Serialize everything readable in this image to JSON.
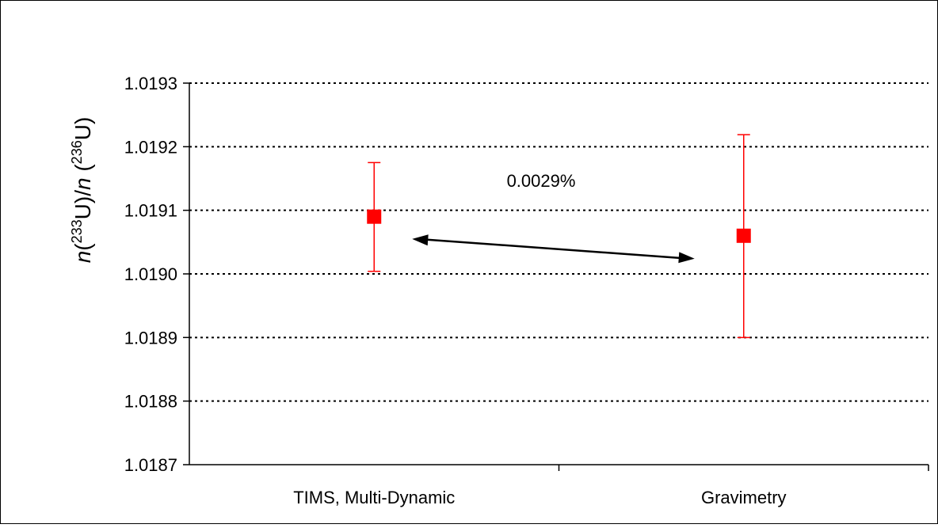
{
  "chart_data": {
    "type": "scatter",
    "categories": [
      "TIMS, Multi-Dynamic",
      "Gravimetry"
    ],
    "series": [
      {
        "values": [
          1.01909,
          1.01906
        ],
        "error_low": [
          1.019004,
          1.0189
        ],
        "error_high": [
          1.019175,
          1.019219
        ]
      }
    ],
    "ylim": [
      1.0187,
      1.0193
    ],
    "yticks": [
      "1.0187",
      "1.0188",
      "1.0189",
      "1.0190",
      "1.0191",
      "1.0192",
      "1.0193"
    ],
    "ytick_values": [
      1.0187,
      1.0188,
      1.0189,
      1.019,
      1.0191,
      1.0192,
      1.0193
    ],
    "ylabel_parts": [
      "n",
      "(",
      "233",
      "U)/",
      "n",
      " (",
      "236",
      "U)"
    ],
    "grid": true,
    "grid_style": "dotted",
    "annotation": {
      "text": "0.0029%",
      "arrow_from": {
        "category_index": 0,
        "y": 1.019055
      },
      "arrow_to": {
        "category_index": 1,
        "y": 1.019024
      }
    },
    "marker_color": "#ff0000",
    "arrow_color": "#000000"
  }
}
